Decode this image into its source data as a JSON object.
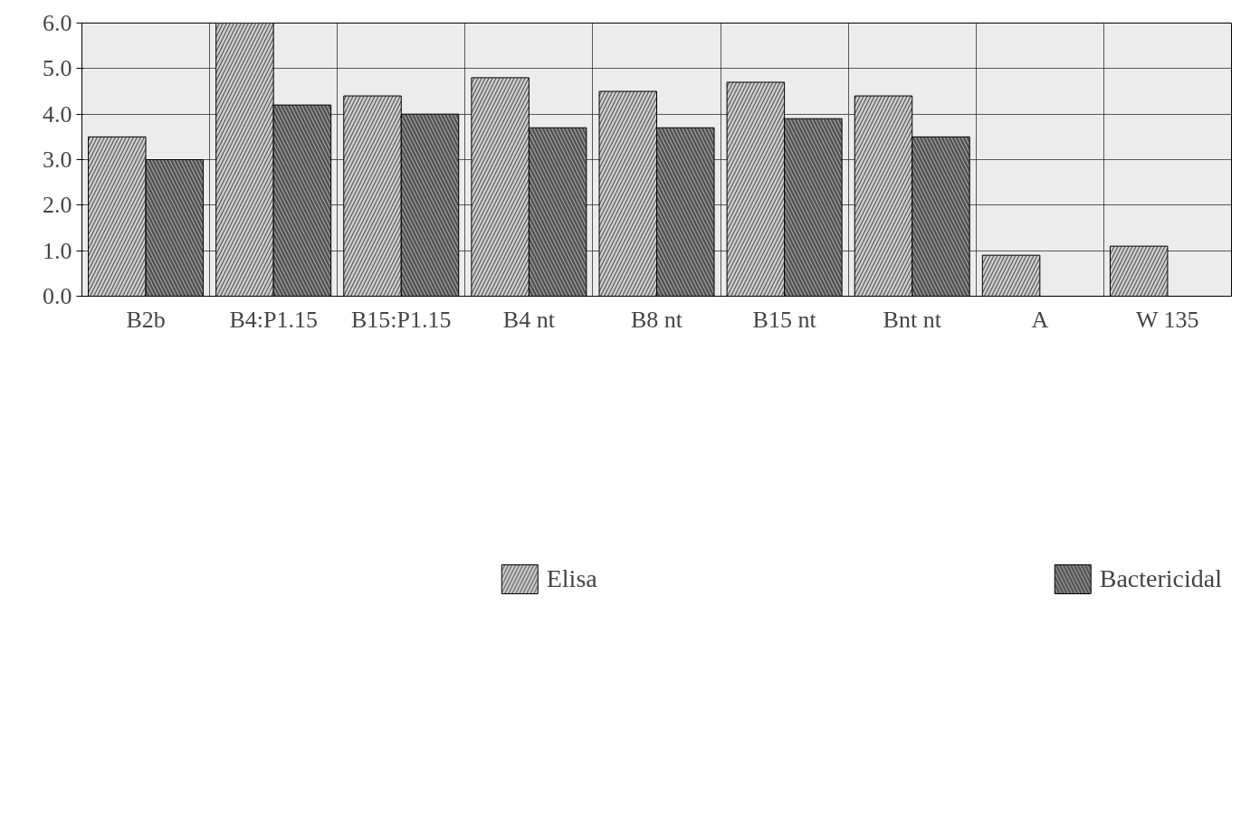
{
  "chart_data": {
    "type": "bar",
    "categories": [
      "B2b",
      "B4:P1.15",
      "B15:P1.15",
      "B4 nt",
      "B8 nt",
      "B15 nt",
      "Bnt nt",
      "A",
      "W 135"
    ],
    "series": [
      {
        "name": "Elisa",
        "color": "#d0d0d0",
        "values": [
          3.5,
          6.0,
          4.4,
          4.8,
          4.5,
          4.7,
          4.4,
          0.9,
          1.1
        ]
      },
      {
        "name": "Bactericidal",
        "color": "#505050",
        "values": [
          3.0,
          4.2,
          4.0,
          3.7,
          3.7,
          3.9,
          3.5,
          null,
          null
        ]
      }
    ],
    "ylim": [
      0,
      6
    ],
    "yticks": [
      {
        "value": 0,
        "label": "0.0"
      },
      {
        "value": 1,
        "label": "1.0"
      },
      {
        "value": 2,
        "label": "2.0"
      },
      {
        "value": 3,
        "label": "3.0"
      },
      {
        "value": 4,
        "label": "4.0"
      },
      {
        "value": 5,
        "label": "5.0"
      },
      {
        "value": 6,
        "label": "6.0"
      }
    ],
    "grid": true,
    "legend": "bottom"
  }
}
